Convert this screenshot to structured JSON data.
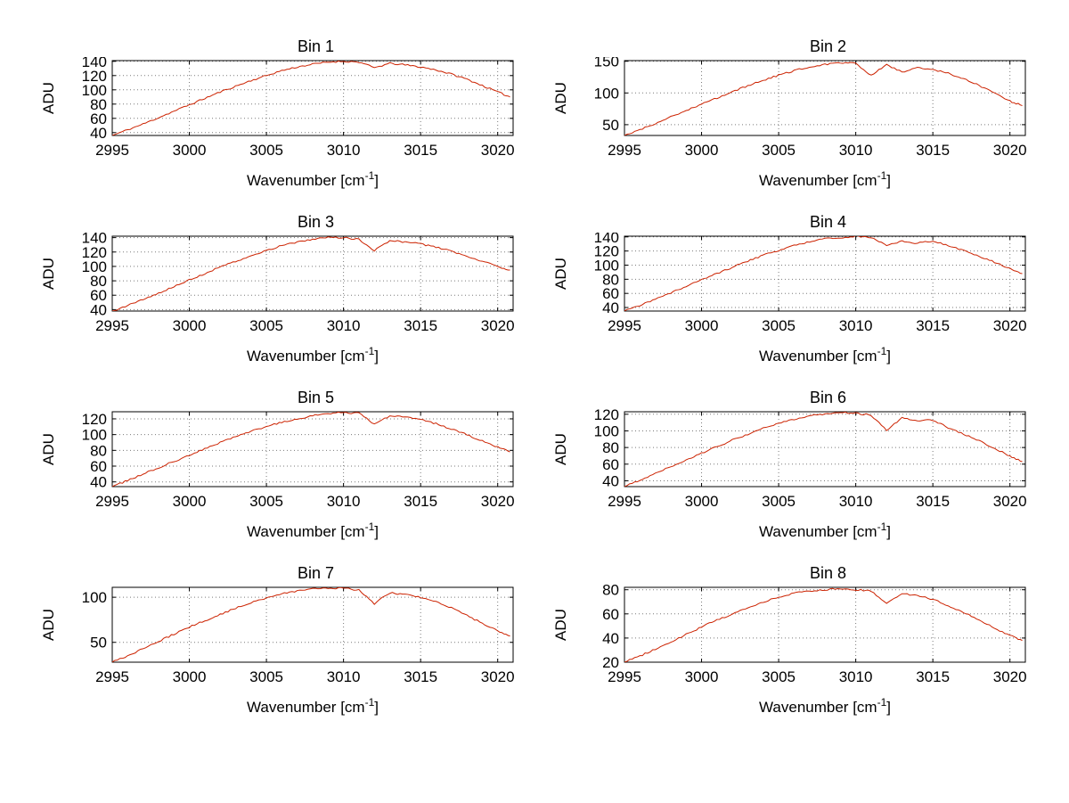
{
  "figure": {
    "background": "#ffffff",
    "line_color": "#cc2200",
    "grid_color": "#7a7a7a",
    "axis_color": "#000000",
    "text_color": "#000000"
  },
  "chart_data": [
    {
      "type": "line",
      "title": "Bin 1",
      "xlabel": "Wavenumber [cm⁻¹]",
      "ylabel": "ADU",
      "grid": true,
      "legend": "none",
      "xlim": [
        2995,
        3021
      ],
      "ylim": [
        36,
        141
      ],
      "xticks": [
        2995,
        3000,
        3005,
        3010,
        3015,
        3020
      ],
      "yticks": [
        40,
        60,
        80,
        100,
        120,
        140
      ],
      "x": [
        2995,
        2996,
        2997,
        2998,
        2999,
        3000,
        3001,
        3002,
        3003,
        3004,
        3005,
        3006,
        3007,
        3008,
        3009,
        3010,
        3011,
        3012,
        3013,
        3014,
        3015,
        3016,
        3017,
        3018,
        3019,
        3020,
        3020.8
      ],
      "y": [
        36,
        44,
        52,
        61,
        70,
        79,
        88,
        97,
        105,
        113,
        120,
        127,
        132,
        136,
        139,
        140,
        139,
        131,
        137,
        135,
        132,
        128,
        122,
        115,
        106,
        97,
        90
      ]
    },
    {
      "type": "line",
      "title": "Bin 2",
      "xlabel": "Wavenumber [cm⁻¹]",
      "ylabel": "ADU",
      "grid": true,
      "legend": "none",
      "xlim": [
        2995,
        3021
      ],
      "ylim": [
        33,
        151
      ],
      "xticks": [
        2995,
        3000,
        3005,
        3010,
        3015,
        3020
      ],
      "yticks": [
        50,
        100,
        150
      ],
      "x": [
        2995,
        2996,
        2997,
        2998,
        2999,
        3000,
        3001,
        3002,
        3003,
        3004,
        3005,
        3006,
        3007,
        3008,
        3009,
        3010,
        3011,
        3012,
        3013,
        3014,
        3015,
        3016,
        3017,
        3018,
        3019,
        3020,
        3020.8
      ],
      "y": [
        33,
        42,
        52,
        62,
        72,
        82,
        92,
        102,
        111,
        120,
        128,
        135,
        141,
        145,
        148,
        147,
        128,
        144,
        133,
        140,
        137,
        131,
        122,
        112,
        99,
        87,
        80
      ]
    },
    {
      "type": "line",
      "title": "Bin 3",
      "xlabel": "Wavenumber [cm⁻¹]",
      "ylabel": "ADU",
      "grid": true,
      "legend": "none",
      "xlim": [
        2995,
        3021
      ],
      "ylim": [
        38,
        142
      ],
      "xticks": [
        2995,
        3000,
        3005,
        3010,
        3015,
        3020
      ],
      "yticks": [
        40,
        60,
        80,
        100,
        120,
        140
      ],
      "x": [
        2995,
        2996,
        2997,
        2998,
        2999,
        3000,
        3001,
        3002,
        3003,
        3004,
        3005,
        3006,
        3007,
        3008,
        3009,
        3010,
        3011,
        3012,
        3013,
        3014,
        3015,
        3016,
        3017,
        3018,
        3019,
        3020,
        3020.8
      ],
      "y": [
        38,
        46,
        54,
        63,
        72,
        81,
        90,
        99,
        107,
        115,
        122,
        129,
        134,
        138,
        141,
        140,
        138,
        122,
        136,
        134,
        131,
        127,
        121,
        114,
        107,
        100,
        95
      ]
    },
    {
      "type": "line",
      "title": "Bin 4",
      "xlabel": "Wavenumber [cm⁻¹]",
      "ylabel": "ADU",
      "grid": true,
      "legend": "none",
      "xlim": [
        2995,
        3021
      ],
      "ylim": [
        35,
        141
      ],
      "xticks": [
        2995,
        3000,
        3005,
        3010,
        3015,
        3020
      ],
      "yticks": [
        40,
        60,
        80,
        100,
        120,
        140
      ],
      "x": [
        2995,
        2996,
        2997,
        2998,
        2999,
        3000,
        3001,
        3002,
        3003,
        3004,
        3005,
        3006,
        3007,
        3008,
        3009,
        3010,
        3011,
        3012,
        3013,
        3014,
        3015,
        3016,
        3017,
        3018,
        3019,
        3020,
        3020.8
      ],
      "y": [
        35,
        43,
        52,
        61,
        70,
        79,
        88,
        97,
        106,
        114,
        121,
        128,
        133,
        137,
        139,
        141,
        139,
        128,
        134,
        131,
        134,
        128,
        121,
        113,
        104,
        95,
        88
      ]
    },
    {
      "type": "line",
      "title": "Bin 5",
      "xlabel": "Wavenumber [cm⁻¹]",
      "ylabel": "ADU",
      "grid": true,
      "legend": "none",
      "xlim": [
        2995,
        3021
      ],
      "ylim": [
        34,
        129
      ],
      "xticks": [
        2995,
        3000,
        3005,
        3010,
        3015,
        3020
      ],
      "yticks": [
        40,
        60,
        80,
        100,
        120
      ],
      "x": [
        2995,
        2996,
        2997,
        2998,
        2999,
        3000,
        3001,
        3002,
        3003,
        3004,
        3005,
        3006,
        3007,
        3008,
        3009,
        3010,
        3011,
        3012,
        3013,
        3014,
        3015,
        3016,
        3017,
        3018,
        3019,
        3020,
        3020.8
      ],
      "y": [
        34,
        42,
        50,
        58,
        66,
        74,
        82,
        90,
        97,
        104,
        110,
        116,
        120,
        124,
        127,
        128,
        127,
        113,
        124,
        122,
        119,
        114,
        107,
        100,
        92,
        84,
        78
      ]
    },
    {
      "type": "line",
      "title": "Bin 6",
      "xlabel": "Wavenumber [cm⁻¹]",
      "ylabel": "ADU",
      "grid": true,
      "legend": "none",
      "xlim": [
        2995,
        3021
      ],
      "ylim": [
        33,
        123
      ],
      "xticks": [
        2995,
        3000,
        3005,
        3010,
        3015,
        3020
      ],
      "yticks": [
        40,
        60,
        80,
        100,
        120
      ],
      "x": [
        2995,
        2996,
        2997,
        2998,
        2999,
        3000,
        3001,
        3002,
        3003,
        3004,
        3005,
        3006,
        3007,
        3008,
        3009,
        3010,
        3011,
        3012,
        3013,
        3014,
        3015,
        3016,
        3017,
        3018,
        3019,
        3020,
        3020.8
      ],
      "y": [
        33,
        41,
        49,
        57,
        65,
        73,
        81,
        89,
        96,
        103,
        109,
        114,
        118,
        120,
        122,
        121,
        119,
        101,
        116,
        112,
        113,
        104,
        96,
        88,
        79,
        70,
        63
      ]
    },
    {
      "type": "line",
      "title": "Bin 7",
      "xlabel": "Wavenumber [cm⁻¹]",
      "ylabel": "ADU",
      "grid": true,
      "legend": "none",
      "xlim": [
        2995,
        3021
      ],
      "ylim": [
        28,
        111
      ],
      "xticks": [
        2995,
        3000,
        3005,
        3010,
        3015,
        3020
      ],
      "yticks": [
        50,
        100
      ],
      "x": [
        2995,
        2996,
        2997,
        2998,
        2999,
        3000,
        3001,
        3002,
        3003,
        3004,
        3005,
        3006,
        3007,
        3008,
        3009,
        3010,
        3011,
        3012,
        3013,
        3014,
        3015,
        3016,
        3017,
        3018,
        3019,
        3020,
        3020.8
      ],
      "y": [
        28,
        35,
        43,
        51,
        59,
        67,
        74,
        81,
        88,
        94,
        99,
        104,
        107,
        109,
        110,
        110,
        108,
        93,
        105,
        103,
        100,
        95,
        88,
        80,
        71,
        63,
        57
      ]
    },
    {
      "type": "line",
      "title": "Bin 8",
      "xlabel": "Wavenumber [cm⁻¹]",
      "ylabel": "ADU",
      "grid": true,
      "legend": "none",
      "xlim": [
        2995,
        3021
      ],
      "ylim": [
        20,
        82
      ],
      "xticks": [
        2995,
        3000,
        3005,
        3010,
        3015,
        3020
      ],
      "yticks": [
        20,
        40,
        60,
        80
      ],
      "x": [
        2995,
        2996,
        2997,
        2998,
        2999,
        3000,
        3001,
        3002,
        3003,
        3004,
        3005,
        3006,
        3007,
        3008,
        3009,
        3010,
        3011,
        3012,
        3013,
        3014,
        3015,
        3016,
        3017,
        3018,
        3019,
        3020,
        3020.8
      ],
      "y": [
        20,
        25,
        31,
        37,
        43,
        49,
        55,
        60,
        65,
        70,
        74,
        77,
        79,
        80,
        81,
        80,
        79,
        69,
        77,
        75,
        72,
        67,
        61,
        55,
        48,
        42,
        38
      ]
    }
  ]
}
